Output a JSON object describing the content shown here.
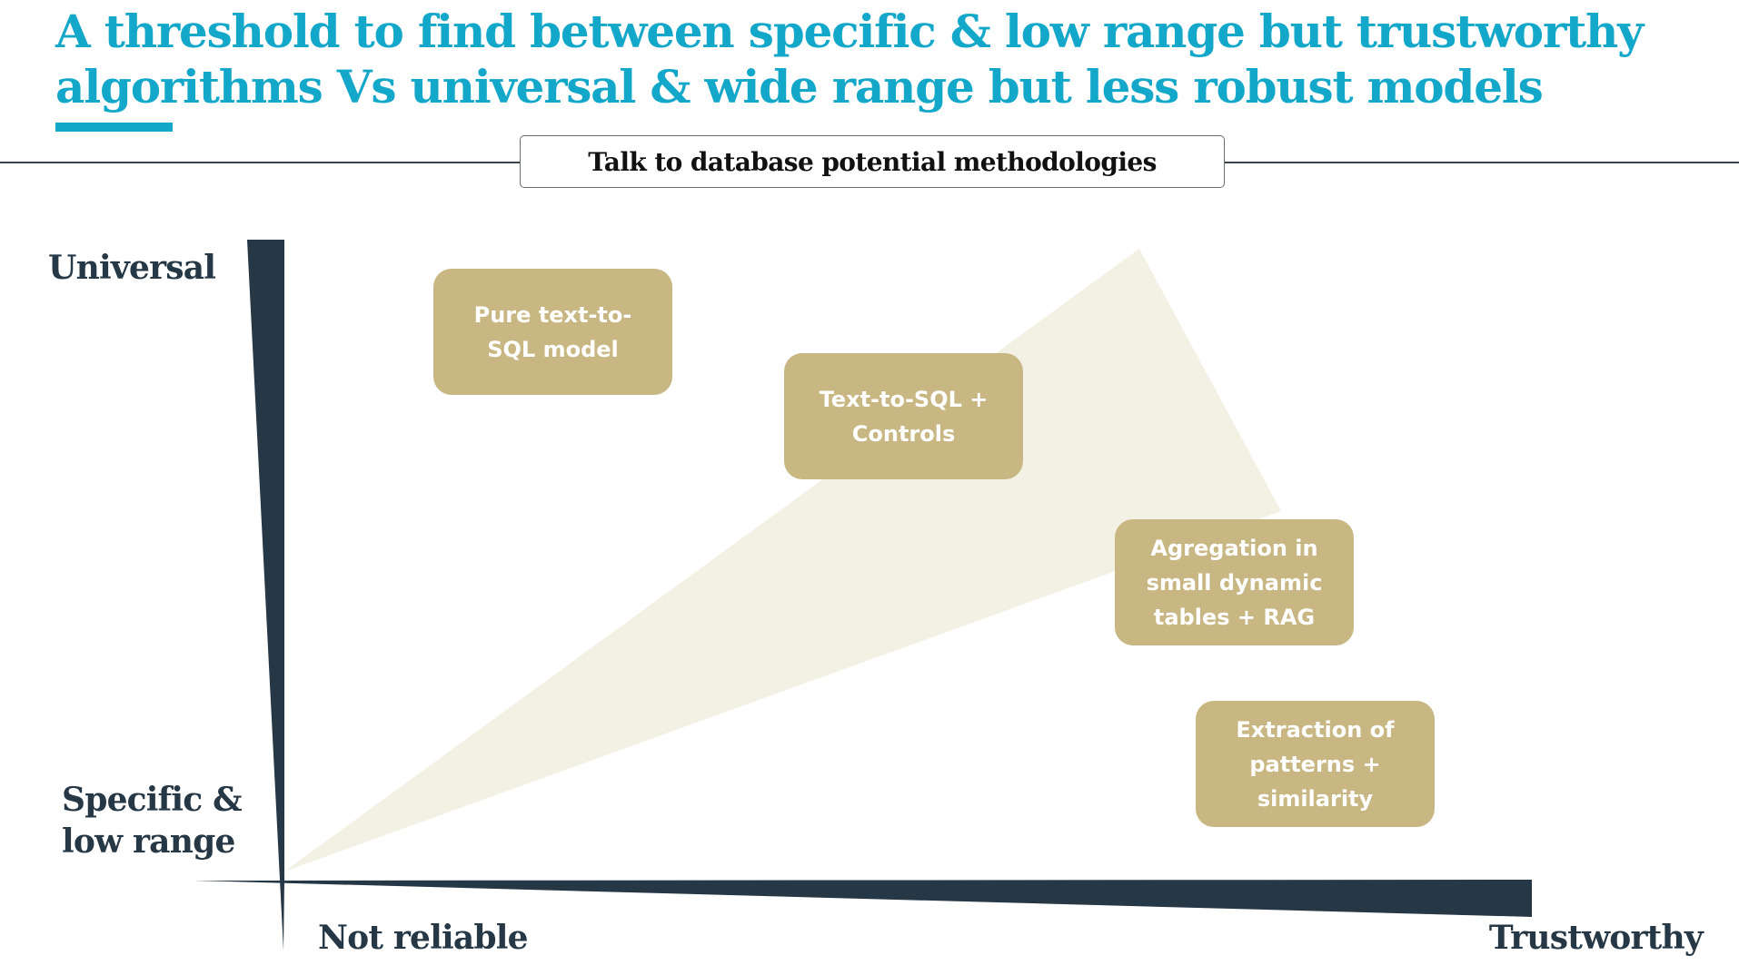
{
  "title": "A threshold to find between specific & low range but trustworthy algorithms Vs universal & wide range but less robust models",
  "subtitle": "Talk to database potential methodologies",
  "axes": {
    "y_top_label": "Universal",
    "y_bottom_label": "Specific & low range",
    "x_left_label": "Not reliable",
    "x_right_label": "Trustworthy"
  },
  "methods": [
    {
      "label": "Pure text-to-SQL model"
    },
    {
      "label": "Text-to-SQL + Controls"
    },
    {
      "label": "Agregation in small dynamic tables + RAG"
    },
    {
      "label": "Extraction of patterns + similarity"
    }
  ],
  "colors": {
    "title": "#13a7c9",
    "axis": "#263746",
    "box": "#c9b783",
    "cone": "#f3f0e4"
  }
}
